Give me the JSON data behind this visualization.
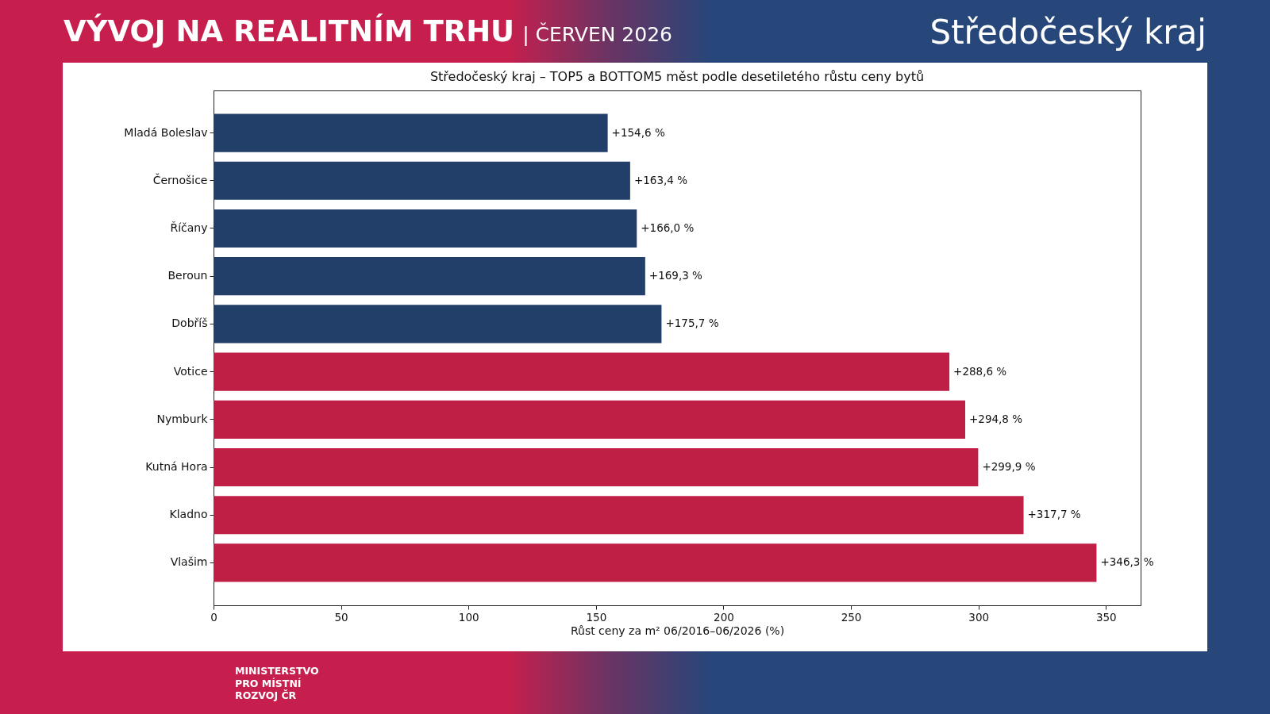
{
  "chart_data": {
    "type": "bar",
    "orientation": "horizontal",
    "title": "Středočeský kraj – TOP5 a BOTTOM5 měst podle desetiletého růstu ceny bytů",
    "xlabel": "Růst ceny za m² 06/2016–06/2026 (%)",
    "categories": [
      "Mladá Boleslav",
      "Černošice",
      "Říčany",
      "Beroun",
      "Dobříš",
      "Votice",
      "Nymburk",
      "Kutná Hora",
      "Kladno",
      "Vlašim"
    ],
    "values": [
      154.6,
      163.4,
      166.0,
      169.3,
      175.7,
      288.6,
      294.8,
      299.9,
      317.7,
      346.3
    ],
    "colors": [
      "#213f69",
      "#213f69",
      "#213f69",
      "#213f69",
      "#213f69",
      "#c01f45",
      "#c01f45",
      "#c01f45",
      "#c01f45",
      "#c01f45"
    ],
    "value_labels": [
      "+154,6 %",
      "+163,4 %",
      "+166,0 %",
      "+169,3 %",
      "+175,7 %",
      "+288,6 %",
      "+294,8 %",
      "+299,9 %",
      "+317,7 %",
      "+346,3 %"
    ],
    "xlim": [
      0,
      363.6
    ],
    "xticks": [
      0,
      50,
      100,
      150,
      200,
      250,
      300,
      350
    ],
    "annotations": [
      "VÝVOJ NA REALITNÍM TRHU",
      "| ČERVEN 2026",
      "Středočeský kraj",
      "MINISTERSTVO PRO MÍSTNÍ ROZVOJ ČR"
    ]
  }
}
